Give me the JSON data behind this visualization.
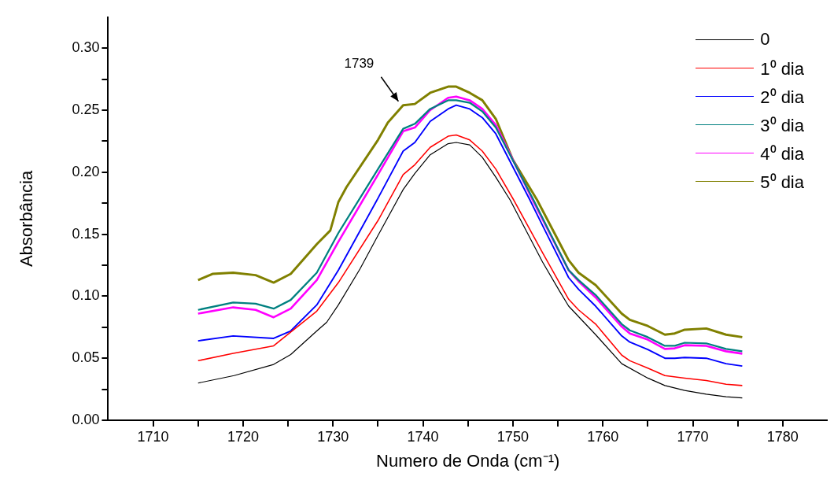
{
  "chart_data": {
    "type": "line",
    "xlabel": "Numero de Onda (cm⁻¹)",
    "ylabel": "Absorbância",
    "xlim": [
      1705,
      1785
    ],
    "ylim": [
      0,
      0.325
    ],
    "xticks": [
      {
        "value": 1710,
        "label": "1710"
      },
      {
        "value": 1715,
        "label": null
      },
      {
        "value": 1720,
        "label": "1720"
      },
      {
        "value": 1725,
        "label": null
      },
      {
        "value": 1730,
        "label": "1730"
      },
      {
        "value": 1735,
        "label": null
      },
      {
        "value": 1740,
        "label": "1740"
      },
      {
        "value": 1745,
        "label": null
      },
      {
        "value": 1750,
        "label": "1750"
      },
      {
        "value": 1755,
        "label": null
      },
      {
        "value": 1760,
        "label": "1760"
      },
      {
        "value": 1765,
        "label": null
      },
      {
        "value": 1770,
        "label": "1770"
      },
      {
        "value": 1775,
        "label": null
      },
      {
        "value": 1780,
        "label": "1780"
      }
    ],
    "yticks": [
      {
        "value": 0,
        "label": "0.00"
      },
      {
        "value": 0.025,
        "label": null
      },
      {
        "value": 0.05,
        "label": "0.05"
      },
      {
        "value": 0.075,
        "label": null
      },
      {
        "value": 0.1,
        "label": "0.10"
      },
      {
        "value": 0.125,
        "label": null
      },
      {
        "value": 0.15,
        "label": "0.15"
      },
      {
        "value": 0.175,
        "label": null
      },
      {
        "value": 0.2,
        "label": "0.20"
      },
      {
        "value": 0.225,
        "label": null
      },
      {
        "value": 0.25,
        "label": "0.25"
      },
      {
        "value": 0.275,
        "label": null
      },
      {
        "value": 0.3,
        "label": "0.30"
      }
    ],
    "grid": false,
    "legend": "top right",
    "annotations": [
      {
        "text": "1739",
        "x": 1737.8,
        "y": 0.254
      }
    ],
    "series": [
      {
        "name": "0",
        "color": "#000000",
        "x": [
          1715,
          1719,
          1723.4,
          1725.3,
          1728.2,
          1729.3,
          1730.6,
          1733,
          1735,
          1737.8,
          1739.1,
          1740.8,
          1742.8,
          1743.7,
          1745.2,
          1746.6,
          1748.1,
          1749.7,
          1753.3,
          1755.2,
          1756.2,
          1759.2,
          1762.1,
          1765,
          1766.9,
          1769.1,
          1771.5,
          1773.7,
          1775.5
        ],
        "values": [
          0.03,
          0.036,
          0.045,
          0.053,
          0.072,
          0.079,
          0.093,
          0.122,
          0.149,
          0.186,
          0.199,
          0.214,
          0.223,
          0.224,
          0.222,
          0.212,
          0.196,
          0.1775,
          0.1275,
          0.104,
          0.092,
          0.069,
          0.0456,
          0.034,
          0.028,
          0.024,
          0.021,
          0.019,
          0.018
        ]
      },
      {
        "name": "1⁰ dia",
        "color": "#ff0000",
        "x": [
          1715,
          1718.9,
          1723.4,
          1728.2,
          1730.6,
          1735,
          1737.8,
          1739.1,
          1740.8,
          1742.8,
          1743.7,
          1745.2,
          1746.6,
          1748.1,
          1750.1,
          1753.3,
          1756.2,
          1757.3,
          1759.2,
          1762.1,
          1763,
          1765,
          1766.9,
          1769.1,
          1771.5,
          1773.7,
          1775.5
        ],
        "values": [
          0.048,
          0.054,
          0.06,
          0.088,
          0.111,
          0.161,
          0.198,
          0.206,
          0.22,
          0.229,
          0.23,
          0.226,
          0.217,
          0.2025,
          0.1775,
          0.135,
          0.0975,
          0.089,
          0.0775,
          0.0525,
          0.048,
          0.042,
          0.036,
          0.034,
          0.032,
          0.029,
          0.028
        ]
      },
      {
        "name": "2⁰ dia",
        "color": "#0000ff",
        "x": [
          1715,
          1718.9,
          1723.4,
          1725.3,
          1728.2,
          1730.6,
          1735,
          1737.8,
          1739.1,
          1740.8,
          1742.8,
          1743.7,
          1745.2,
          1746.6,
          1748.1,
          1751.9,
          1753.3,
          1756.2,
          1757.3,
          1759.2,
          1762.1,
          1763,
          1765,
          1766.9,
          1768,
          1769.1,
          1771.5,
          1773.7,
          1775.5
        ],
        "values": [
          0.064,
          0.068,
          0.066,
          0.072,
          0.093,
          0.121,
          0.179,
          0.217,
          0.224,
          0.241,
          0.251,
          0.254,
          0.251,
          0.244,
          0.231,
          0.1775,
          0.157,
          0.115,
          0.1056,
          0.092,
          0.068,
          0.063,
          0.057,
          0.05,
          0.05,
          0.0506,
          0.05,
          0.0456,
          0.0437
        ]
      },
      {
        "name": "3⁰ dia",
        "color": "#008080",
        "x": [
          1715,
          1718.9,
          1721.4,
          1723.4,
          1725.3,
          1728.2,
          1730.6,
          1735,
          1737.8,
          1739.1,
          1740.8,
          1742.8,
          1743.7,
          1745.2,
          1746.6,
          1748.1,
          1752.3,
          1756.2,
          1757.3,
          1759.2,
          1762.1,
          1763,
          1765,
          1766.9,
          1768,
          1769.1,
          1771.5,
          1773.7,
          1775.5
        ],
        "values": [
          0.089,
          0.095,
          0.094,
          0.09,
          0.097,
          0.119,
          0.151,
          0.2025,
          0.235,
          0.239,
          0.251,
          0.258,
          0.258,
          0.256,
          0.249,
          0.236,
          0.1775,
          0.121,
          0.113,
          0.101,
          0.0775,
          0.0725,
          0.067,
          0.06,
          0.06,
          0.0625,
          0.062,
          0.0575,
          0.0556
        ]
      },
      {
        "name": "4⁰ dia",
        "color": "#ff00ff",
        "x": [
          1715,
          1718.9,
          1721.4,
          1723.4,
          1725.3,
          1728.2,
          1730.6,
          1735,
          1737.8,
          1739.1,
          1740.8,
          1742.8,
          1743.7,
          1745.2,
          1746.6,
          1748.1,
          1752.2,
          1756.2,
          1757.3,
          1759.2,
          1762.1,
          1763,
          1765,
          1766.9,
          1768,
          1769.1,
          1771.5,
          1773.7,
          1775.5
        ],
        "values": [
          0.086,
          0.091,
          0.089,
          0.083,
          0.09,
          0.113,
          0.144,
          0.198,
          0.233,
          0.236,
          0.25,
          0.26,
          0.261,
          0.258,
          0.251,
          0.238,
          0.1775,
          0.121,
          0.112,
          0.099,
          0.0755,
          0.07,
          0.065,
          0.0575,
          0.058,
          0.0605,
          0.06,
          0.0556,
          0.0537
        ]
      },
      {
        "name": "5⁰ dia",
        "color": "#808000",
        "x": [
          1715,
          1716.6,
          1718.9,
          1721.4,
          1723.4,
          1725.3,
          1728.2,
          1729.7,
          1730.6,
          1731.5,
          1735,
          1736.1,
          1737.8,
          1739.1,
          1740.8,
          1742.8,
          1743.7,
          1745.2,
          1746.6,
          1748.1,
          1750,
          1752.7,
          1756.2,
          1757.3,
          1759.2,
          1762.1,
          1763,
          1765,
          1766.9,
          1768,
          1769.1,
          1771.5,
          1773.7,
          1775.5
        ],
        "values": [
          0.113,
          0.118,
          0.119,
          0.117,
          0.111,
          0.118,
          0.142,
          0.153,
          0.176,
          0.188,
          0.226,
          0.24,
          0.254,
          0.255,
          0.264,
          0.269,
          0.269,
          0.264,
          0.258,
          0.243,
          0.21,
          0.1775,
          0.129,
          0.119,
          0.109,
          0.086,
          0.081,
          0.076,
          0.069,
          0.07,
          0.073,
          0.074,
          0.069,
          0.067
        ]
      }
    ]
  }
}
